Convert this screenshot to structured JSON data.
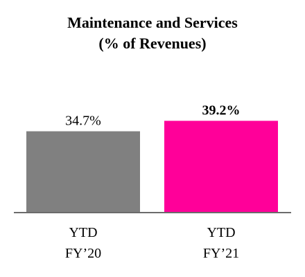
{
  "chart_data": {
    "type": "bar",
    "title_line1": "Maintenance and Services",
    "title_line2": "(% of Revenues)",
    "categories": [
      [
        "YTD",
        "FY’20"
      ],
      [
        "YTD",
        "FY’21"
      ]
    ],
    "values": [
      34.7,
      39.2
    ],
    "data_labels": [
      "34.7%",
      "39.2%"
    ],
    "data_label_bold": [
      false,
      true
    ],
    "colors": [
      "#808080",
      "#ff0099"
    ],
    "axis_color": "#6b6b6b",
    "ylim": [
      0,
      45
    ],
    "grid": false,
    "legend": false
  }
}
